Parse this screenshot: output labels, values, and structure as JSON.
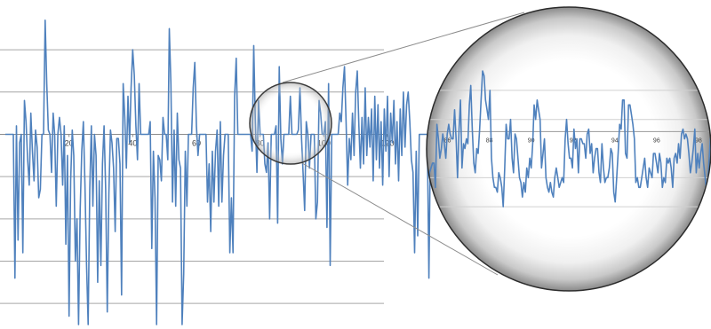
{
  "chart_data": [
    {
      "type": "line",
      "role": "main",
      "x_ticks": [
        20,
        40,
        60,
        80,
        100,
        120
      ],
      "xlim": [
        0,
        120
      ],
      "ylim": [
        -4.5,
        2.8
      ],
      "grid": true,
      "series_color": "#4f81bd",
      "x_step": 0.5,
      "y": [
        0,
        0,
        0,
        0,
        0,
        0,
        -3.4,
        0.2,
        -2.5,
        -0.2,
        0,
        -2.8,
        0.8,
        0.3,
        -0.6,
        -1.2,
        0.5,
        -0.4,
        -1.1,
        0.1,
        -0.3,
        -1.5,
        -1.3,
        0,
        0,
        2.7,
        1.2,
        0.1,
        0,
        -0.9,
        0.5,
        0,
        -1.7,
        0,
        0.4,
        0,
        -1.2,
        0.2,
        -2.6,
        -0.5,
        -4.3,
        -1.1,
        0.1,
        -0.5,
        -3.0,
        -2.0,
        -4.5,
        -1.8,
        -0.4,
        0.3,
        -1.2,
        -3.1,
        -4.5,
        -1.3,
        0.2,
        -1.7,
        0,
        -0.5,
        -3.5,
        -1.1,
        -3.1,
        -0.7,
        0.2,
        -1.3,
        -4.2,
        -1.4,
        0.1,
        -0.2,
        -0.8,
        -2.3,
        -0.1,
        -0.1,
        -0.7,
        -3.8,
        1.2,
        0.4,
        -0.8,
        0.9,
        -0.2,
        1.1,
        2.0,
        1.4,
        0.2,
        -0.6,
        1.2,
        0,
        0,
        0,
        0,
        0,
        0,
        0.3,
        -2.7,
        -0.4,
        -1.5,
        -4.5,
        -0.5,
        -0.6,
        -1.1,
        0.4,
        0,
        0,
        -0.6,
        2.5,
        1.2,
        -1.6,
        0.1,
        -1.7,
        0.5,
        -0.6,
        -0.8,
        -4.5,
        -3.3,
        -0.4,
        -1.7,
        0,
        0,
        0,
        1.1,
        1.7,
        0.2,
        -0.5,
        0,
        0,
        0,
        0,
        0,
        -1.6,
        -0.7,
        -2.3,
        -0.4,
        -1.6,
        -0.4,
        0.1,
        -1.7,
        0.3,
        -1.6,
        -0.5,
        0,
        0,
        0,
        -2.8,
        -1.5,
        -2.8,
        0.9,
        1.8,
        0,
        0,
        0,
        0,
        0,
        0,
        0,
        0,
        0,
        -0.4,
        2.1,
        0.3,
        -0.9,
        0.8,
        0,
        0,
        0,
        -0.7,
        -0.9,
        -0.2,
        -2.0,
        0,
        0,
        0,
        0.2,
        -2.1,
        1.6,
        -0.1,
        -0.7,
        0,
        0,
        0,
        0,
        0.9,
        0,
        0,
        0,
        0,
        0.1,
        1.1,
        -0.1,
        -0.9,
        -1.8,
        0.3,
        0,
        -0.8,
        0,
        0,
        0,
        -2.0,
        -1.6,
        0.8,
        0.5,
        0,
        0,
        0.3,
        -2.2,
        1.2,
        -3.1,
        0,
        0,
        0,
        0,
        0,
        0.5,
        0.3,
        1.1,
        1.6,
        0.3,
        -1.2,
        -0.1,
        -0.6,
        0.5,
        -0.5,
        1.0,
        1.5,
        0.2,
        -0.8,
        0.4,
        -0.7,
        1.1,
        -0.5,
        0.4,
        -0.3,
        0.6,
        -1.1,
        0.9,
        -0.6,
        0.7,
        -0.8,
        0.3,
        -1.2,
        0.6,
        -0.4,
        0.9,
        -1.0,
        0.5,
        -0.2,
        0.8,
        -0.7,
        0.3,
        -1.1,
        0.6,
        -0.5,
        1.0,
        -0.3,
        0.7,
        1.0,
        0.3,
        -0.6,
        -0.9,
        -2.8,
        -0.4,
        -2.4,
        0,
        0,
        0,
        0,
        0,
        0,
        -3.4,
        0,
        0,
        0,
        0,
        0,
        0,
        0,
        0,
        0,
        0.6,
        1.3,
        -0.4,
        0.2,
        -1.6,
        -1.3,
        0.1,
        -0.7,
        0,
        0,
        0,
        0,
        0,
        -1.1,
        -0.7,
        -0.2,
        -0.9,
        0.5,
        -1.6,
        -1.0,
        1.2,
        0.3,
        0.9,
        0,
        0,
        0,
        0,
        0,
        0,
        0,
        0,
        0,
        0,
        0,
        -1.3,
        -2.6,
        -0.5,
        -0.9,
        -0.1,
        0.5,
        -1.2,
        -0.7,
        -0.3,
        1.3,
        0.8,
        0.6
      ]
    },
    {
      "type": "line",
      "role": "zoomed-inset",
      "x_ticks": [
        86,
        88,
        90,
        92,
        94,
        96,
        98
      ],
      "xlim": [
        85,
        98.6
      ],
      "ylim": [
        -1.6,
        1.6
      ],
      "grid": true,
      "series_color": "#4f81bd",
      "y": [
        -1.5,
        -1.0,
        -0.5,
        -0.4,
        -0.3,
        -0.3,
        -0.8,
        0.5,
        0.2,
        -0.2,
        0.0,
        0.3,
        0.1,
        -0.2,
        0.3,
        0.5,
        0.3,
        0.2,
        0.2,
        0.8,
        0.2,
        -0.6,
        0.4,
        1.0,
        -0.4,
        0.1,
        0.0,
        0.2,
        0.1,
        0.9,
        1.3,
        0.4,
        -0.3,
        -0.5,
        0.0,
        -0.1,
        0.4,
        1.0,
        1.6,
        1.5,
        1.0,
        0.8,
        0.6,
        1.2,
        -0.2,
        -0.6,
        -0.8,
        -0.8,
        -0.9,
        -0.5,
        -0.6,
        -0.8,
        -1.2,
        -0.4,
        0.5,
        0.2,
        0.2,
        0.6,
        -0.2,
        -0.5,
        0.3,
        0.2,
        -0.2,
        -0.6,
        -0.7,
        -1.0,
        -0.7,
        -0.9,
        -0.4,
        -0.6,
        -0.2,
        -0.4,
        0.1,
        0.9,
        0.6,
        1.0,
        0.8,
        0.6,
        -0.4,
        -0.1,
        0.2,
        -0.6,
        -0.8,
        -0.9,
        -0.7,
        -0.9,
        -1.0,
        -0.6,
        -0.4,
        -0.6,
        -0.8,
        -0.7,
        -0.6,
        -0.7,
        0.2,
        0.6,
        0.1,
        -0.2,
        -0.2,
        -0.4,
        0.4,
        0.0,
        0.2,
        -0.5,
        0.2,
        0.2,
        0.1,
        0.1,
        -0.2,
        0.3,
        0.4,
        -0.1,
        0.1,
        -0.5,
        -0.2,
        0.0,
        0.0,
        -0.5,
        -0.7,
        0.1,
        -0.4,
        -0.7,
        -0.6,
        -0.6,
        -0.4,
        0.0,
        -0.1,
        -0.9,
        -1.1,
        -0.6,
        -0.1,
        0.5,
        0.4,
        1.0,
        1.0,
        -0.1,
        -0.2,
        0.9,
        0.9,
        0.7,
        0.5,
        0.2,
        -0.7,
        -0.6,
        -0.8,
        -0.8,
        -0.6,
        -0.4,
        -0.2,
        -0.6,
        -0.8,
        -0.4,
        -0.5,
        -0.6,
        -0.1,
        -0.1,
        -0.3,
        -0.5,
        -0.1,
        -0.3,
        -0.8,
        -0.6,
        -0.7,
        -0.2,
        -0.3,
        -0.2,
        -0.4,
        -0.8,
        -0.2,
        -0.1,
        -0.3,
        0.1,
        -0.2,
        0.3,
        0.4,
        0.2,
        0.3,
        0.2,
        -0.1,
        -0.5,
        -0.3,
        0.0,
        0.4,
        -0.5,
        -0.1,
        -0.4,
        -0.1,
        0.1,
        -0.3,
        -0.6,
        -0.9,
        -0.6,
        -0.1,
        0.4
      ]
    }
  ]
}
